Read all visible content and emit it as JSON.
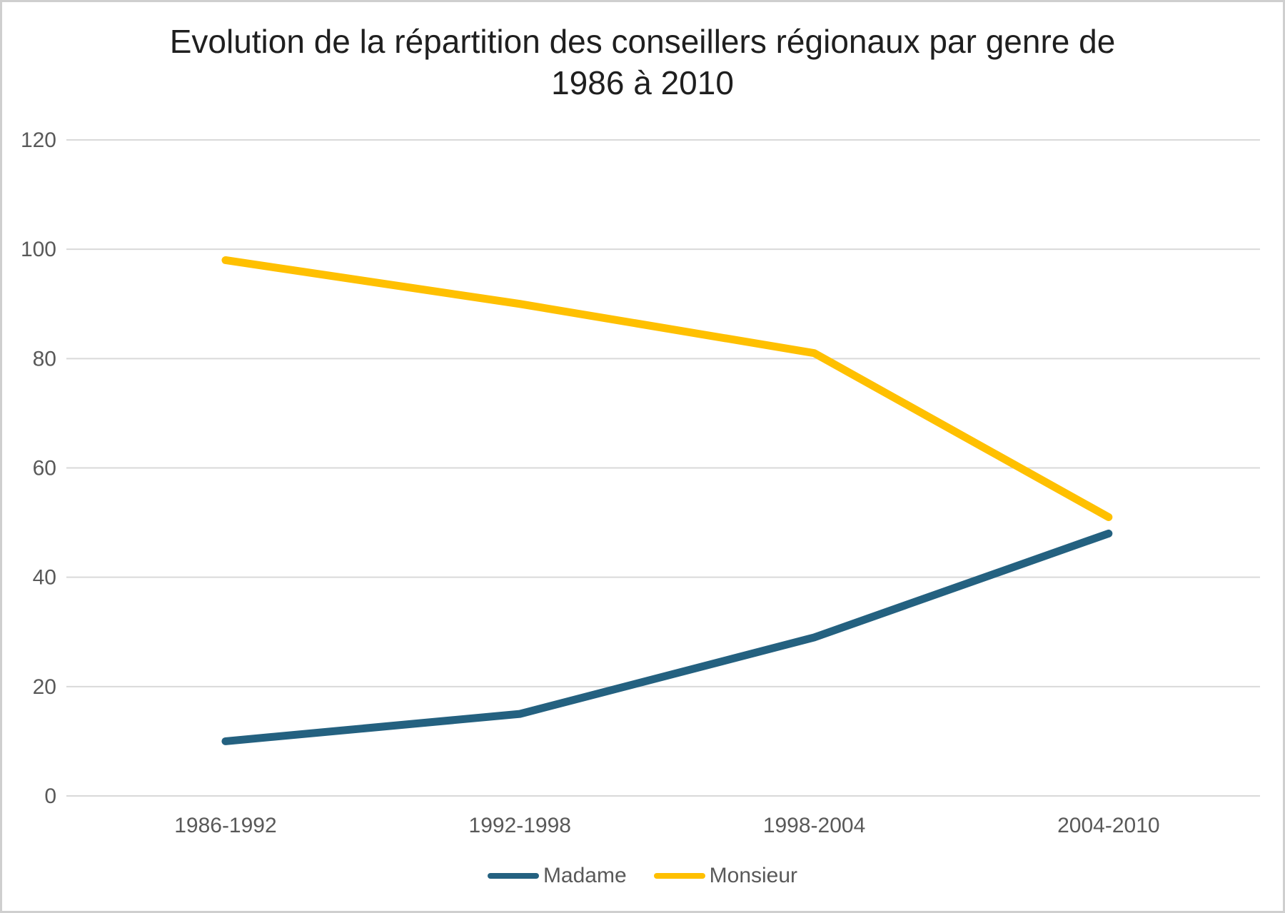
{
  "chart_data": {
    "type": "line",
    "title": "Evolution de la répartition des conseillers régionaux par genre de 1986 à 2010",
    "title_lines": [
      "Evolution de la répartition des conseillers régionaux par genre de",
      "1986 à 2010"
    ],
    "categories": [
      "1986-1992",
      "1992-1998",
      "1998-2004",
      "2004-2010"
    ],
    "series": [
      {
        "name": "Madame",
        "color": "#246180",
        "values": [
          10,
          15,
          29,
          48
        ]
      },
      {
        "name": "Monsieur",
        "color": "#FFC000",
        "values": [
          98,
          90,
          81,
          51
        ]
      }
    ],
    "y_ticks": [
      0,
      20,
      40,
      60,
      80,
      100,
      120
    ],
    "ylim": [
      0,
      120
    ],
    "xlabel": "",
    "ylabel": "",
    "grid": "horizontal",
    "legend_position": "bottom-center",
    "colors": {
      "grid": "#D9D9D9",
      "axis_text": "#595959",
      "title_text": "#1F1F1F",
      "background": "#FFFFFF",
      "border": "#CFCFCF"
    }
  }
}
